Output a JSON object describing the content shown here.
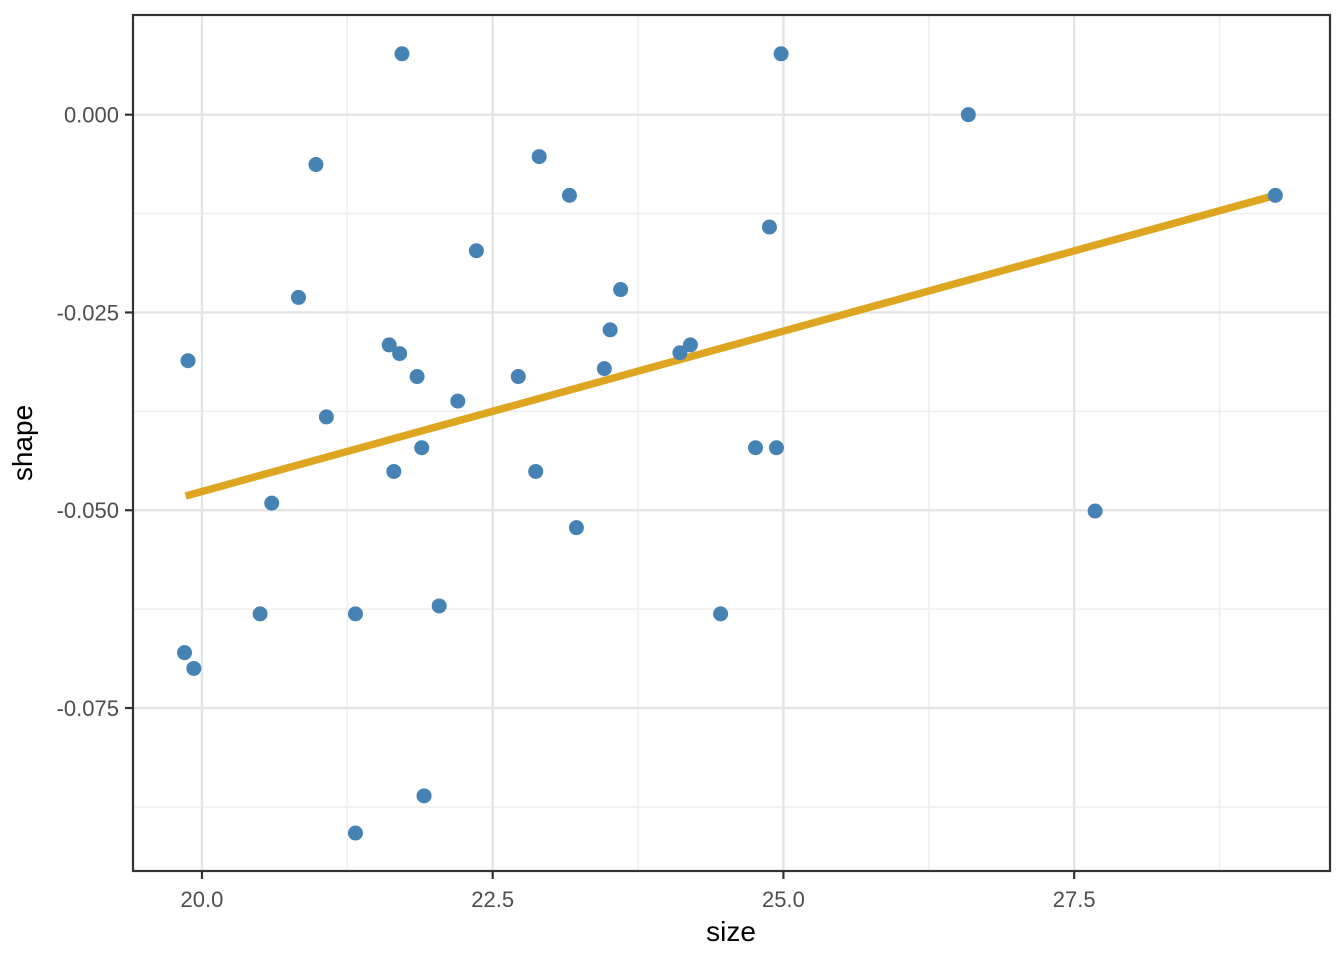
{
  "chart_data": {
    "type": "scatter",
    "title": "",
    "xlabel": "size",
    "ylabel": "shape",
    "xlim": [
      19.407,
      29.7
    ],
    "ylim": [
      -0.0956,
      0.0126
    ],
    "grid": true,
    "legend": "none",
    "x_major_ticks": [
      20.0,
      22.5,
      25.0,
      27.5
    ],
    "x_tick_labels": [
      "20.0",
      "22.5",
      "25.0",
      "27.5"
    ],
    "x_minor_ticks": [
      21.25,
      23.75,
      26.25,
      28.75
    ],
    "y_major_ticks": [
      0.0,
      -0.025,
      -0.05,
      -0.075
    ],
    "y_tick_labels": [
      "0.000",
      "-0.025",
      "-0.050",
      "-0.075"
    ],
    "y_minor_ticks": [
      -0.0125,
      -0.0375,
      -0.0625,
      -0.0875
    ],
    "point_color": "#4682B4",
    "trend_color": "#DEA521",
    "series": [
      {
        "name": "observations",
        "type": "scatter",
        "points": [
          [
            21.72,
            0.0077
          ],
          [
            20.98,
            -0.0063
          ],
          [
            22.36,
            -0.0172
          ],
          [
            20.83,
            -0.0231
          ],
          [
            24.98,
            0.0077
          ],
          [
            22.9,
            -0.0053
          ],
          [
            23.16,
            -0.0102
          ],
          [
            24.88,
            -0.0142
          ],
          [
            23.6,
            -0.0221
          ],
          [
            26.59,
            0.0
          ],
          [
            29.23,
            -0.0102
          ],
          [
            19.88,
            -0.0311
          ],
          [
            21.61,
            -0.0291
          ],
          [
            21.7,
            -0.0302
          ],
          [
            21.85,
            -0.0331
          ],
          [
            22.2,
            -0.0362
          ],
          [
            21.07,
            -0.0382
          ],
          [
            21.89,
            -0.0421
          ],
          [
            21.65,
            -0.0451
          ],
          [
            20.6,
            -0.0491
          ],
          [
            22.72,
            -0.0331
          ],
          [
            23.51,
            -0.0272
          ],
          [
            24.11,
            -0.0301
          ],
          [
            24.2,
            -0.0291
          ],
          [
            23.46,
            -0.0321
          ],
          [
            24.76,
            -0.0421
          ],
          [
            24.94,
            -0.0421
          ],
          [
            22.87,
            -0.0451
          ],
          [
            23.22,
            -0.0522
          ],
          [
            27.68,
            -0.0501
          ],
          [
            20.5,
            -0.0631
          ],
          [
            21.32,
            -0.0631
          ],
          [
            22.04,
            -0.0621
          ],
          [
            19.85,
            -0.068
          ],
          [
            19.93,
            -0.07
          ],
          [
            21.91,
            -0.0861
          ],
          [
            21.32,
            -0.0908
          ],
          [
            24.46,
            -0.0631
          ]
        ]
      },
      {
        "name": "trend-line",
        "type": "line",
        "points": [
          [
            19.86,
            -0.0482
          ],
          [
            29.23,
            -0.0102
          ]
        ]
      }
    ]
  }
}
